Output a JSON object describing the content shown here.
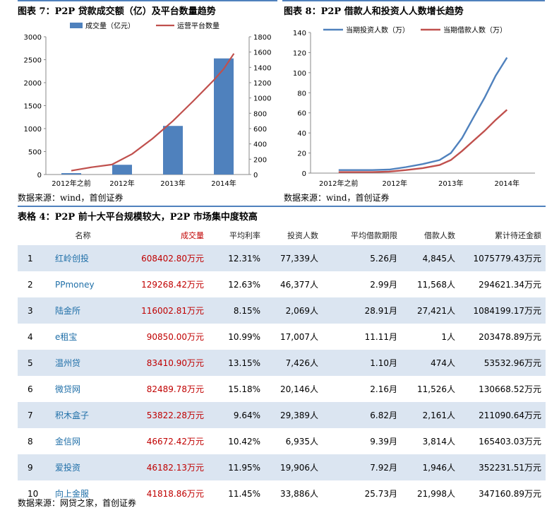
{
  "colors": {
    "bar": "#4f81bd",
    "line_red": "#c0504d",
    "line_blue": "#4f81bd",
    "rule": "#4f81bd",
    "band": "#dbe5f1",
    "name": "#1f6fa8",
    "volume": "#c00000"
  },
  "fig7": {
    "title": "图表 7：P2P 贷款成交额（亿）及平台数量趋势",
    "source": "数据来源：wind，首创证券",
    "chart_data": {
      "type": "bar",
      "categories": [
        "2012年之前",
        "2012年",
        "2013年",
        "2014年"
      ],
      "series": [
        {
          "name": "成交量（亿元）",
          "type": "bar",
          "axis": "left",
          "values": [
            30,
            212,
            1058,
            2528
          ]
        },
        {
          "name": "运营平台数量",
          "type": "line",
          "axis": "right",
          "x": [
            0,
            0.4,
            0.8,
            1.2,
            1.6,
            2.0,
            2.4,
            2.8,
            3.0,
            3.2
          ],
          "values": [
            50,
            95,
            130,
            270,
            470,
            700,
            960,
            1230,
            1380,
            1580
          ]
        }
      ],
      "ylim_left": [
        0,
        3000
      ],
      "left_ticks": [
        "0",
        "500",
        "1000",
        "1500",
        "2000",
        "2500",
        "3000"
      ],
      "ylim_right": [
        0,
        1800
      ],
      "right_ticks": [
        "0",
        "200",
        "400",
        "600",
        "800",
        "1000",
        "1200",
        "1400",
        "1600",
        "1800"
      ],
      "legend": "top"
    }
  },
  "fig8": {
    "title": "图表 8：P2P 借款人和投资人人数增长趋势",
    "source": "数据来源：wind，首创证券",
    "chart_data": {
      "type": "line",
      "categories": [
        "2012年之前",
        "2012年",
        "2013年",
        "2014年"
      ],
      "series": [
        {
          "name": "当期投资人数（万）",
          "x": [
            0,
            0.3,
            0.6,
            0.9,
            1.2,
            1.5,
            1.8,
            2.0,
            2.2,
            2.4,
            2.6,
            2.8,
            3.0
          ],
          "values": [
            3,
            3,
            3,
            3.5,
            6,
            9,
            13,
            20,
            35,
            55,
            75,
            97,
            115
          ]
        },
        {
          "name": "当期借款人数（万）",
          "x": [
            0,
            0.3,
            0.6,
            0.9,
            1.2,
            1.5,
            1.8,
            2.0,
            2.2,
            2.4,
            2.6,
            2.8,
            3.0
          ],
          "values": [
            1,
            1,
            1,
            1.5,
            3,
            5,
            8,
            13,
            22,
            32,
            42,
            53,
            63
          ]
        }
      ],
      "ylim": [
        0,
        140
      ],
      "ticks": [
        "0",
        "20",
        "40",
        "60",
        "80",
        "100",
        "120",
        "140"
      ],
      "legend": "top"
    }
  },
  "table4": {
    "title": "表格 4：P2P 前十大平台规模较大，P2P 市场集中度较高",
    "headers": [
      "",
      "名称",
      "成交量",
      "平均利率",
      "投资人数",
      "平均借款期限",
      "借款人数",
      "累计待还金额"
    ],
    "rows": [
      [
        "1",
        "红岭创投",
        "608402.80万元",
        "12.31%",
        "77,339人",
        "5.26月",
        "4,845人",
        "1075779.43万元"
      ],
      [
        "2",
        "PPmoney",
        "129268.42万元",
        "12.63%",
        "46,377人",
        "2.99月",
        "11,568人",
        "294621.34万元"
      ],
      [
        "3",
        "陆金所",
        "116002.81万元",
        "8.15%",
        "2,069人",
        "28.91月",
        "27,421人",
        "1084199.17万元"
      ],
      [
        "4",
        "e租宝",
        "90850.00万元",
        "10.99%",
        "17,007人",
        "11.11月",
        "1人",
        "203478.89万元"
      ],
      [
        "5",
        "温州贷",
        "83410.90万元",
        "13.15%",
        "7,426人",
        "1.10月",
        "474人",
        "53532.96万元"
      ],
      [
        "6",
        "微贷网",
        "82489.78万元",
        "15.18%",
        "20,146人",
        "2.16月",
        "11,526人",
        "130668.52万元"
      ],
      [
        "7",
        "积木盒子",
        "53822.28万元",
        "9.64%",
        "29,389人",
        "6.82月",
        "2,161人",
        "211090.64万元"
      ],
      [
        "8",
        "金信网",
        "46672.42万元",
        "10.42%",
        "6,935人",
        "9.39月",
        "3,814人",
        "165403.03万元"
      ],
      [
        "9",
        "爱投资",
        "46182.13万元",
        "11.95%",
        "19,906人",
        "7.92月",
        "1,946人",
        "352231.51万元"
      ],
      [
        "10",
        "向上金服",
        "41818.86万元",
        "11.45%",
        "33,886人",
        "25.73月",
        "21,998人",
        "347160.89万元"
      ]
    ],
    "source": "数据来源：网贷之家，首创证券"
  }
}
